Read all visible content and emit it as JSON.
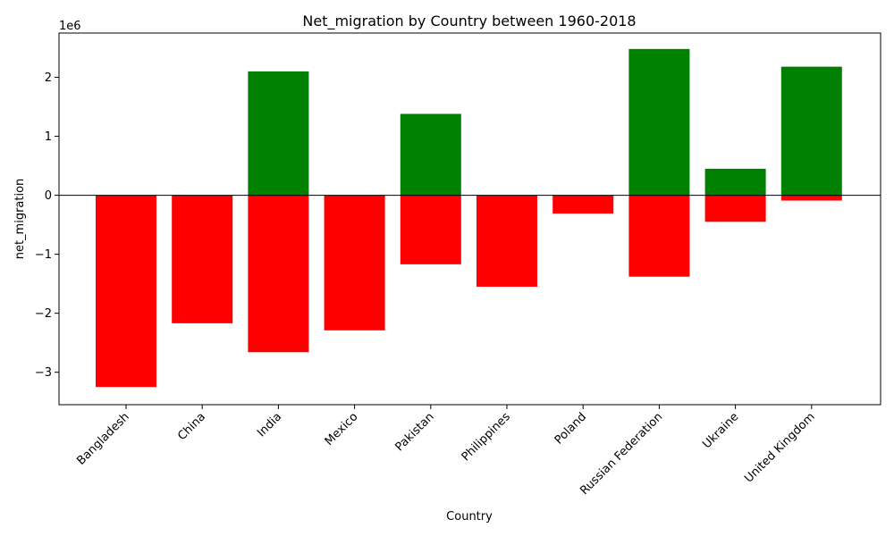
{
  "chart_data": {
    "type": "bar",
    "title": "Net_migration by Country between 1960-2018",
    "xlabel": "Country",
    "ylabel": "net_migration",
    "offset_label": "1e6",
    "categories": [
      "Bangladesh",
      "China",
      "India",
      "Mexico",
      "Pakistan",
      "Philippines",
      "Poland",
      "Russian Federation",
      "Ukraine",
      "United Kingdom"
    ],
    "series": [
      {
        "color": "#008000",
        "values": [
          0,
          0,
          2100000,
          0,
          1380000,
          0,
          0,
          2480000,
          450000,
          2180000
        ]
      },
      {
        "color": "#ff0000",
        "values": [
          -3250000,
          -2170000,
          -2660000,
          -2290000,
          -1170000,
          -1550000,
          -310000,
          -1380000,
          -450000,
          -90000
        ]
      }
    ],
    "ylim": [
      -3550000,
      2750000
    ],
    "yticks": [
      -3000000,
      -2000000,
      -1000000,
      0,
      1000000,
      2000000
    ],
    "ytick_labels": [
      "−3",
      "−2",
      "−1",
      "0",
      "1",
      "2"
    ],
    "grid": false,
    "zero_line": true
  }
}
